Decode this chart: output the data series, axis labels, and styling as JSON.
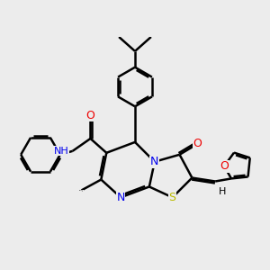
{
  "bg_color": "#ececec",
  "bond_color": "#000000",
  "bond_width": 1.8,
  "atom_colors": {
    "N": "#0000ee",
    "O": "#ee0000",
    "S": "#bbbb00",
    "C": "#000000",
    "H": "#000000"
  },
  "font_size": 8
}
